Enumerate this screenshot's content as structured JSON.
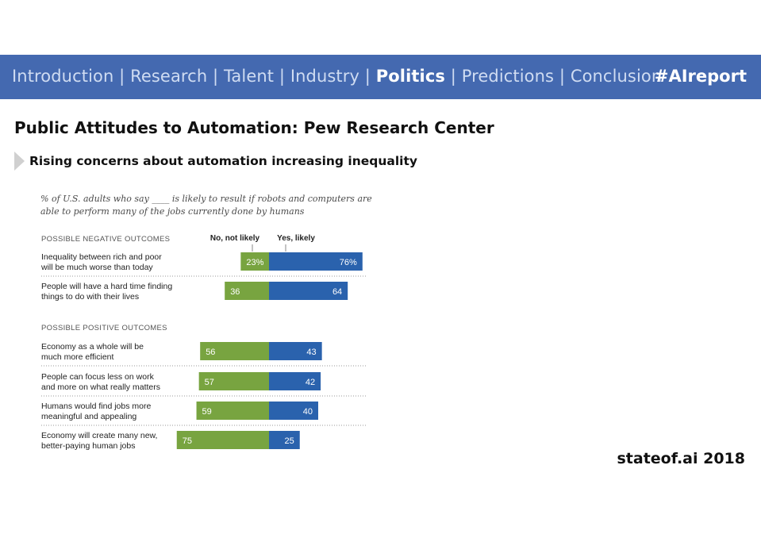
{
  "nav": {
    "items": [
      {
        "label": "Introduction",
        "active": false
      },
      {
        "label": "Research",
        "active": false
      },
      {
        "label": "Talent",
        "active": false
      },
      {
        "label": "Industry",
        "active": false
      },
      {
        "label": "Politics",
        "active": true
      },
      {
        "label": "Predictions",
        "active": false
      },
      {
        "label": "Conclusion",
        "active": false
      }
    ],
    "separator": "|",
    "hashtag": "#AIreport"
  },
  "slide": {
    "title": "Public Attitudes to Automation: Pew Research Center",
    "subtitle": "Rising concerns about automation increasing inequality",
    "footer": "stateof.ai 2018"
  },
  "chart_data": {
    "type": "bar",
    "intro": "% of U.S. adults who say ____ is likely to result if robots and computers are able to perform many of the jobs currently done by humans",
    "legend": [
      "No, not likely",
      "Yes, likely"
    ],
    "colors": {
      "no": "#78a440",
      "yes": "#2a62ad"
    },
    "groups": [
      {
        "label": "POSSIBLE NEGATIVE OUTCOMES",
        "items": [
          {
            "label_lines": [
              "Inequality between rich and poor",
              "will be much worse than today"
            ],
            "no": 23,
            "yes": 76,
            "no_label": "23%",
            "yes_label": "76%"
          },
          {
            "label_lines": [
              "People will have a hard time finding",
              "things to do with their lives"
            ],
            "no": 36,
            "yes": 64,
            "no_label": "36",
            "yes_label": "64"
          }
        ]
      },
      {
        "label": "POSSIBLE POSITIVE OUTCOMES",
        "items": [
          {
            "label_lines": [
              "Economy as a whole will be",
              "much more efficient"
            ],
            "no": 56,
            "yes": 43,
            "no_label": "56",
            "yes_label": "43"
          },
          {
            "label_lines": [
              "People can focus less on work",
              "and more on what really matters"
            ],
            "no": 57,
            "yes": 42,
            "no_label": "57",
            "yes_label": "42"
          },
          {
            "label_lines": [
              "Humans would find jobs more",
              "meaningful and appealing"
            ],
            "no": 59,
            "yes": 40,
            "no_label": "59",
            "yes_label": "40"
          },
          {
            "label_lines": [
              "Economy will create many new,",
              "better-paying human jobs"
            ],
            "no": 75,
            "yes": 25,
            "no_label": "75",
            "yes_label": "25"
          }
        ]
      }
    ]
  }
}
